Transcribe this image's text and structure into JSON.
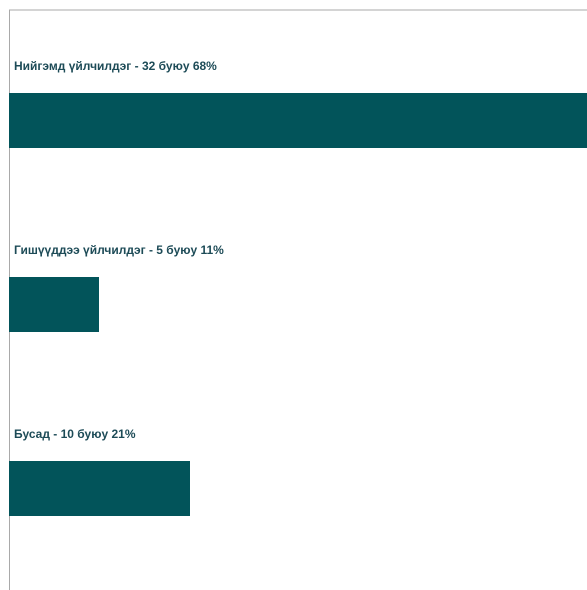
{
  "chart_data": {
    "type": "bar",
    "orientation": "horizontal",
    "categories": [
      "Нийгэмд үйлчилдэг - 32 буюу 68%",
      "Гишүүддээ үйлчилдэг - 5 буюу 11%",
      "Бусад - 10 буюу 21%"
    ],
    "values": [
      32,
      5,
      10
    ],
    "percentages": [
      68,
      11,
      21
    ],
    "xlim": [
      0,
      32
    ],
    "grid": false,
    "legend": "none",
    "colors": {
      "bar": "#02545a",
      "label": "#1d4b57",
      "axis": "#a9a9a9",
      "background": "#ffffff"
    }
  }
}
